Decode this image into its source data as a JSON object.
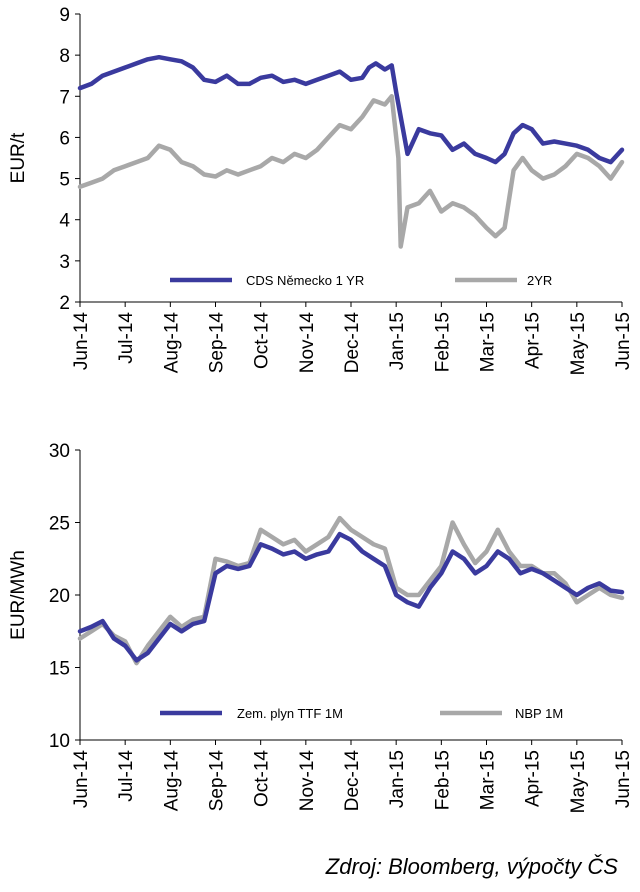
{
  "source_note": "Zdroj: Bloomberg, výpočty ČS",
  "colors": {
    "blue": "#3a3a9e",
    "gray": "#a8a8a8",
    "axis": "#000000"
  },
  "chart_data": [
    {
      "type": "line",
      "ylabel": "EUR/t",
      "ylim": [
        2,
        9
      ],
      "yticks": [
        2,
        3,
        4,
        5,
        6,
        7,
        8,
        9
      ],
      "categories": [
        "Jun-14",
        "Jul-14",
        "Aug-14",
        "Sep-14",
        "Oct-14",
        "Nov-14",
        "Dec-14",
        "Jan-15",
        "Feb-15",
        "Mar-15",
        "Apr-15",
        "May-15",
        "Jun-15"
      ],
      "legend": [
        "CDS Německo 1 YR",
        "2YR"
      ],
      "series": [
        {
          "name": "CDS Německo 1 YR",
          "color": "#3a3a9e",
          "x": [
            0,
            0.25,
            0.5,
            0.75,
            1,
            1.25,
            1.5,
            1.75,
            2,
            2.25,
            2.5,
            2.75,
            3,
            3.25,
            3.5,
            3.75,
            4,
            4.25,
            4.5,
            4.75,
            5,
            5.25,
            5.5,
            5.75,
            6,
            6.25,
            6.4,
            6.55,
            6.75,
            6.9,
            7,
            7.25,
            7.5,
            7.75,
            8,
            8.25,
            8.5,
            8.75,
            9,
            9.2,
            9.4,
            9.6,
            9.8,
            10,
            10.25,
            10.5,
            10.75,
            11,
            11.25,
            11.5,
            11.75,
            12
          ],
          "values": [
            7.2,
            7.3,
            7.5,
            7.6,
            7.7,
            7.8,
            7.9,
            7.95,
            7.9,
            7.85,
            7.7,
            7.4,
            7.35,
            7.5,
            7.3,
            7.3,
            7.45,
            7.5,
            7.35,
            7.4,
            7.3,
            7.4,
            7.5,
            7.6,
            7.4,
            7.45,
            7.7,
            7.8,
            7.65,
            7.75,
            7.1,
            5.6,
            6.2,
            6.1,
            6.05,
            5.7,
            5.85,
            5.6,
            5.5,
            5.4,
            5.6,
            6.1,
            6.3,
            6.2,
            5.85,
            5.9,
            5.85,
            5.8,
            5.7,
            5.5,
            5.4,
            5.7
          ]
        },
        {
          "name": "2YR",
          "color": "#a8a8a8",
          "x": [
            0,
            0.25,
            0.5,
            0.75,
            1,
            1.25,
            1.5,
            1.75,
            2,
            2.25,
            2.5,
            2.75,
            3,
            3.25,
            3.5,
            3.75,
            4,
            4.25,
            4.5,
            4.75,
            5,
            5.25,
            5.5,
            5.75,
            6,
            6.25,
            6.5,
            6.75,
            6.9,
            7,
            7.05,
            7.1,
            7.25,
            7.5,
            7.75,
            8,
            8.25,
            8.5,
            8.75,
            9,
            9.2,
            9.4,
            9.6,
            9.8,
            10,
            10.25,
            10.5,
            10.75,
            11,
            11.25,
            11.5,
            11.75,
            12
          ],
          "values": [
            4.8,
            4.9,
            5.0,
            5.2,
            5.3,
            5.4,
            5.5,
            5.8,
            5.7,
            5.4,
            5.3,
            5.1,
            5.05,
            5.2,
            5.1,
            5.2,
            5.3,
            5.5,
            5.4,
            5.6,
            5.5,
            5.7,
            6.0,
            6.3,
            6.2,
            6.5,
            6.9,
            6.8,
            7.0,
            6.0,
            5.5,
            3.35,
            4.3,
            4.4,
            4.7,
            4.2,
            4.4,
            4.3,
            4.1,
            3.8,
            3.6,
            3.8,
            5.2,
            5.5,
            5.2,
            5.0,
            5.1,
            5.3,
            5.6,
            5.5,
            5.3,
            5.0,
            5.4
          ]
        }
      ]
    },
    {
      "type": "line",
      "ylabel": "EUR/MWh",
      "ylim": [
        10,
        30
      ],
      "yticks": [
        10,
        15,
        20,
        25,
        30
      ],
      "categories": [
        "Jun-14",
        "Jul-14",
        "Aug-14",
        "Sep-14",
        "Oct-14",
        "Nov-14",
        "Dec-14",
        "Jan-15",
        "Feb-15",
        "Mar-15",
        "Apr-15",
        "May-15",
        "Jun-15"
      ],
      "legend": [
        "Zem. plyn TTF 1M",
        "NBP 1M"
      ],
      "series": [
        {
          "name": "Zem. plyn TTF 1M",
          "color": "#3a3a9e",
          "x": [
            0,
            0.25,
            0.5,
            0.75,
            1,
            1.25,
            1.5,
            1.75,
            2,
            2.25,
            2.5,
            2.75,
            3,
            3.25,
            3.5,
            3.75,
            4,
            4.25,
            4.5,
            4.75,
            5,
            5.25,
            5.5,
            5.75,
            6,
            6.25,
            6.5,
            6.75,
            7,
            7.25,
            7.5,
            7.75,
            8,
            8.25,
            8.5,
            8.75,
            9,
            9.25,
            9.5,
            9.75,
            10,
            10.25,
            10.5,
            10.75,
            11,
            11.25,
            11.5,
            11.75,
            12
          ],
          "values": [
            17.5,
            17.8,
            18.2,
            17.0,
            16.5,
            15.5,
            16.0,
            17.0,
            18.0,
            17.5,
            18.0,
            18.2,
            21.5,
            22.0,
            21.8,
            22.0,
            23.5,
            23.2,
            22.8,
            23.0,
            22.5,
            22.8,
            23.0,
            24.2,
            23.8,
            23.0,
            22.5,
            22.0,
            20.0,
            19.5,
            19.2,
            20.5,
            21.5,
            23.0,
            22.5,
            21.5,
            22.0,
            23.0,
            22.5,
            21.5,
            21.8,
            21.5,
            21.0,
            20.5,
            20.0,
            20.5,
            20.8,
            20.3,
            20.2
          ]
        },
        {
          "name": "NBP 1M",
          "color": "#a8a8a8",
          "x": [
            0,
            0.25,
            0.5,
            0.75,
            1,
            1.25,
            1.5,
            1.75,
            2,
            2.25,
            2.5,
            2.75,
            3,
            3.25,
            3.5,
            3.75,
            4,
            4.25,
            4.5,
            4.75,
            5,
            5.25,
            5.5,
            5.75,
            6,
            6.25,
            6.5,
            6.75,
            7,
            7.25,
            7.5,
            7.75,
            8,
            8.25,
            8.5,
            8.75,
            9,
            9.25,
            9.5,
            9.75,
            10,
            10.25,
            10.5,
            10.75,
            11,
            11.25,
            11.5,
            11.75,
            12
          ],
          "values": [
            17.0,
            17.5,
            18.0,
            17.2,
            16.8,
            15.3,
            16.5,
            17.5,
            18.5,
            17.8,
            18.3,
            18.5,
            22.5,
            22.3,
            22.0,
            22.2,
            24.5,
            24.0,
            23.5,
            23.8,
            23.0,
            23.5,
            24.0,
            25.3,
            24.5,
            24.0,
            23.5,
            23.2,
            20.5,
            20.0,
            20.0,
            21.0,
            22.0,
            25.0,
            23.5,
            22.2,
            23.0,
            24.5,
            23.0,
            22.0,
            22.0,
            21.5,
            21.5,
            20.8,
            19.5,
            20.0,
            20.5,
            20.0,
            19.8
          ]
        }
      ]
    }
  ]
}
